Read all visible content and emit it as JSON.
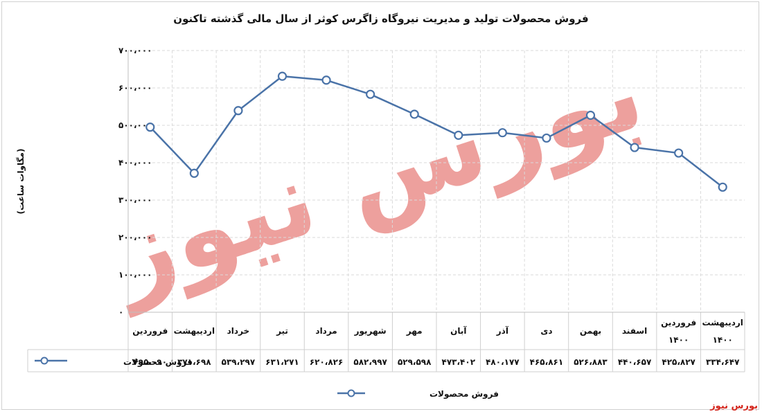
{
  "chart_data": {
    "type": "line",
    "title": "فروش محصولات تولید و مدیریت نیروگاه زاگرس کوثر از سال مالی گذشته تاکنون",
    "ylabel": "(مگاوات ساعت)",
    "xlabel": "",
    "ylim": [
      0,
      700000
    ],
    "yticks": [
      0,
      100000,
      200000,
      300000,
      400000,
      500000,
      600000,
      700000
    ],
    "ytick_labels": [
      "۰",
      "۱۰۰،۰۰۰",
      "۲۰۰،۰۰۰",
      "۳۰۰،۰۰۰",
      "۴۰۰،۰۰۰",
      "۵۰۰،۰۰۰",
      "۶۰۰،۰۰۰",
      "۷۰۰،۰۰۰"
    ],
    "categories": [
      [
        "فروردین"
      ],
      [
        "اردیبهشت"
      ],
      [
        "خرداد"
      ],
      [
        "تیر"
      ],
      [
        "مرداد"
      ],
      [
        "شهریور"
      ],
      [
        "مهر"
      ],
      [
        "آبان"
      ],
      [
        "آذر"
      ],
      [
        "دی"
      ],
      [
        "بهمن"
      ],
      [
        "اسفند"
      ],
      [
        "فروردین",
        "۱۴۰۰"
      ],
      [
        "اردیبهشت",
        "۱۴۰۰"
      ]
    ],
    "series": [
      {
        "name": "فروش محصولات",
        "color": "#4a73a8",
        "values": [
          495090,
          371698,
          539297,
          631271,
          620826,
          582997,
          529598,
          473402,
          480177,
          465861,
          526883,
          440657,
          425827,
          334647
        ],
        "value_labels": [
          "۴۹۵،۰۹۰",
          "۳۷۱،۶۹۸",
          "۵۳۹،۲۹۷",
          "۶۳۱،۲۷۱",
          "۶۲۰،۸۲۶",
          "۵۸۲،۹۹۷",
          "۵۲۹،۵۹۸",
          "۴۷۳،۴۰۲",
          "۴۸۰،۱۷۷",
          "۴۶۵،۸۶۱",
          "۵۲۶،۸۸۳",
          "۴۴۰،۶۵۷",
          "۴۲۵،۸۲۷",
          "۳۳۴،۶۴۷"
        ]
      }
    ],
    "grid": true,
    "legend": "bottom",
    "data_table": true
  },
  "watermark": {
    "text": "بورس نیوز",
    "color": "#e8817d"
  },
  "footer": {
    "brand": "بورس نیوز"
  }
}
